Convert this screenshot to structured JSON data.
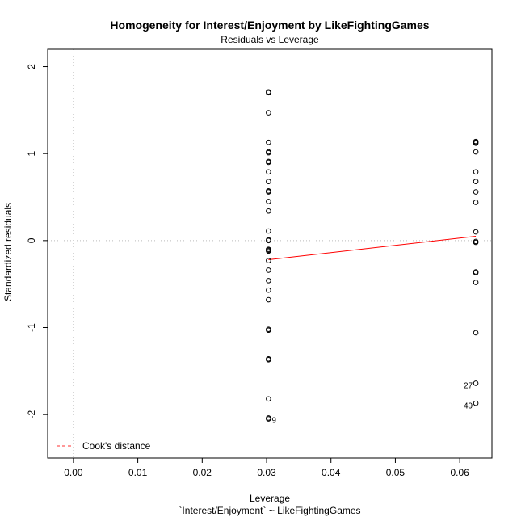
{
  "chart_data": {
    "type": "scatter",
    "title": "Homogeneity for Interest/Enjoyment by LikeFightingGames",
    "subtitle": "Residuals vs Leverage",
    "xlabel": "Leverage",
    "xlabel2": "`Interest/Enjoyment` ~ LikeFightingGames",
    "ylabel": "Standardized residuals",
    "xlim": [
      -0.004,
      0.065
    ],
    "ylim": [
      -2.5,
      2.2
    ],
    "x_ticks": [
      0.0,
      0.01,
      0.02,
      0.03,
      0.04,
      0.05,
      0.06
    ],
    "x_tick_labels": [
      "0.00",
      "0.01",
      "0.02",
      "0.03",
      "0.04",
      "0.05",
      "0.06"
    ],
    "y_ticks": [
      -2,
      -1,
      0,
      1,
      2
    ],
    "y_tick_labels": [
      "-2",
      "-1",
      "0",
      "1",
      "2"
    ],
    "grid": false,
    "reference_lines": {
      "x": 0,
      "y": 0
    },
    "legend": {
      "position": "bottom-left",
      "label": "Cook's distance",
      "color": "#ff3030",
      "style": "dashed"
    },
    "smooth_line": {
      "color": "#ff0000",
      "points": [
        [
          0.0303,
          -0.22
        ],
        [
          0.0625,
          0.05
        ]
      ]
    },
    "point_color": "#000000",
    "series": [
      {
        "x": [
          0.0303,
          0.0303,
          0.0303,
          0.0303,
          0.0303,
          0.0303,
          0.0303,
          0.0303,
          0.0303,
          0.0303,
          0.0303,
          0.0303,
          0.0303,
          0.0303,
          0.0303,
          0.0303,
          0.0303,
          0.0303,
          0.0303,
          0.0303,
          0.0303,
          0.0303,
          0.0303,
          0.0303,
          0.0303,
          0.0303,
          0.0303,
          0.0303,
          0.0303,
          0.0303,
          0.0303,
          0.0303,
          0.0303
        ],
        "y": [
          1.71,
          1.7,
          1.47,
          1.13,
          1.02,
          1.01,
          0.91,
          0.9,
          0.79,
          0.68,
          0.57,
          0.56,
          0.45,
          0.34,
          0.11,
          0.0,
          -0.11,
          -0.12,
          -0.23,
          -0.34,
          -0.46,
          -0.57,
          -0.68,
          -1.02,
          -1.03,
          -1.36,
          -1.37,
          -1.82,
          -2.04,
          -2.05,
          0.01,
          -0.1,
          0.57
        ]
      },
      {
        "x": [
          0.0625,
          0.0625,
          0.0625,
          0.0625,
          0.0625,
          0.0625,
          0.0625,
          0.0625,
          0.0625,
          0.0625,
          0.0625,
          0.0625,
          0.0625,
          0.0625,
          0.0625,
          0.0625,
          0.0625
        ],
        "y": [
          1.14,
          1.13,
          1.02,
          0.79,
          0.68,
          0.56,
          0.44,
          0.1,
          -0.01,
          -0.02,
          -0.36,
          -0.37,
          -0.48,
          -1.06,
          -1.64,
          -1.87,
          1.12
        ]
      }
    ],
    "point_labels": [
      {
        "text": "9",
        "x": 0.0303,
        "y": -2.06,
        "side": "right"
      },
      {
        "text": "27",
        "x": 0.0625,
        "y": -1.66,
        "side": "left"
      },
      {
        "text": "49",
        "x": 0.0625,
        "y": -1.89,
        "side": "left"
      }
    ]
  }
}
